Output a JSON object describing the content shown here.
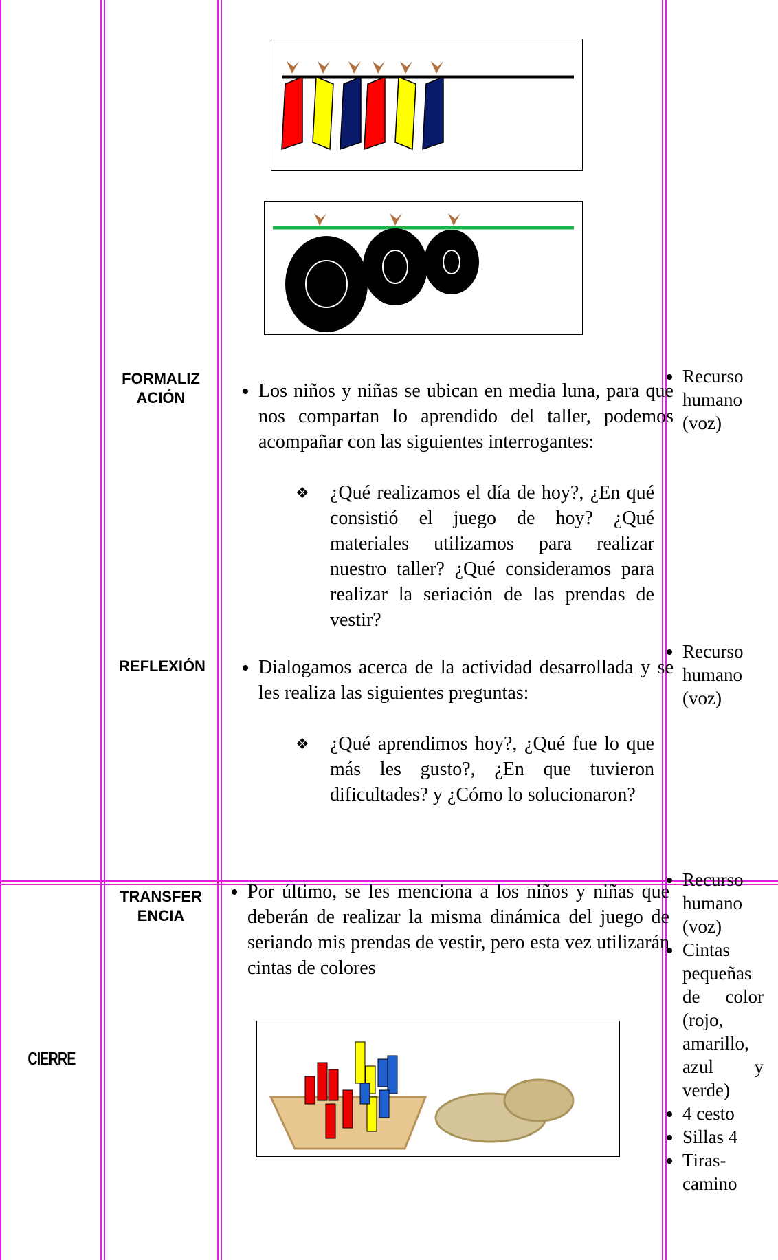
{
  "table": {
    "rows": [
      {
        "phases": [
          {
            "label": "FORMALIZACIÓN",
            "text": "Los niños y niñas se ubican en media luna, para que nos compartan lo aprendido del taller, podemos acompañar con las siguientes interrogantes:",
            "questions": "¿Qué realizamos el día de hoy?, ¿En qué consistió el juego de hoy? ¿Qué materiales utilizamos para realizar nuestro taller? ¿Qué consideramos para realizar la seriación de las prendas de vestir?",
            "resources": [
              "Recurso humano (voz)"
            ]
          },
          {
            "label": "REFLEXIÓN",
            "text": "Dialogamos acerca de la actividad desarrollada y se les realiza las siguientes preguntas:",
            "questions": "¿Qué aprendimos hoy?, ¿Qué fue lo que más les gusto?, ¿En que tuvieron dificultades? y ¿Cómo lo solucionaron?",
            "resources": [
              "Recurso humano (voz)"
            ]
          }
        ]
      },
      {
        "stage": "CIERRE",
        "phases": [
          {
            "label": "TRANSFERENCIA",
            "text": "Por último, se les menciona a los niños y niñas que deberán de realizar la misma dinámica del juego de seriando mis prendas de vestir, pero esta vez utilizarán cintas de colores",
            "resources": [
              "Recurso humano (voz)",
              "Cintas pequeñas de color (rojo, amarillo, azul y verde)",
              "4 cesto",
              "Sillas 4",
              "Tiras-camino"
            ]
          }
        ]
      }
    ]
  }
}
